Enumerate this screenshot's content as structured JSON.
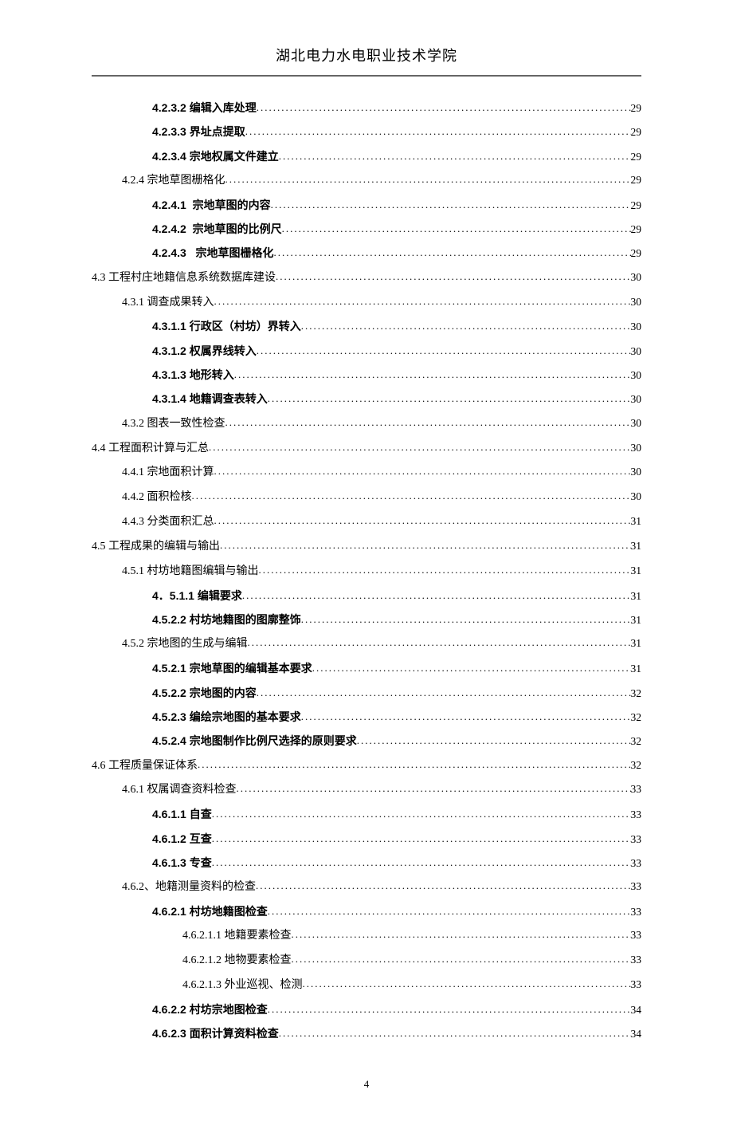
{
  "header": {
    "title": "湖北电力水电职业技术学院"
  },
  "page_number": "4",
  "toc_entries": [
    {
      "indent": 2,
      "bold": true,
      "num": "4.2.3.2 ",
      "label": "编辑入库处理 ",
      "page": "29"
    },
    {
      "indent": 2,
      "bold": true,
      "num": "4.2.3.3 ",
      "label": "界址点提取 ",
      "page": "29"
    },
    {
      "indent": 2,
      "bold": true,
      "num": "4.2.3.4 ",
      "label": "宗地权属文件建立 ",
      "page": "29"
    },
    {
      "indent": 1,
      "bold": false,
      "num": "4.2.4 ",
      "label": "宗地草图栅格化",
      "page": "29"
    },
    {
      "indent": 2,
      "bold": true,
      "num": "4.2.4.1  ",
      "label": "宗地草图的内容 ",
      "page": "29"
    },
    {
      "indent": 2,
      "bold": true,
      "num": "4.2.4.2  ",
      "label": "宗地草图的比例尺 ",
      "page": "29"
    },
    {
      "indent": 2,
      "bold": true,
      "num": "4.2.4.3   ",
      "label": "宗地草图栅格化 ",
      "page": "29"
    },
    {
      "indent": 0,
      "bold": false,
      "num": "4.3 ",
      "label": "工程村庄地籍信息系统数据库建设",
      "page": "30"
    },
    {
      "indent": 1,
      "bold": false,
      "num": "4.3.1 ",
      "label": "调查成果转入",
      "page": "30"
    },
    {
      "indent": 2,
      "bold": true,
      "num": "4.3.1.1 ",
      "label": "行政区（村坊）界转入 ",
      "page": "30"
    },
    {
      "indent": 2,
      "bold": true,
      "num": "4.3.1.2 ",
      "label": "权属界线转入 ",
      "page": "30"
    },
    {
      "indent": 2,
      "bold": true,
      "num": "4.3.1.3 ",
      "label": "地形转入 ",
      "page": "30"
    },
    {
      "indent": 2,
      "bold": true,
      "num": "4.3.1.4 ",
      "label": "地籍调查表转入 ",
      "page": "30"
    },
    {
      "indent": 1,
      "bold": false,
      "num": "4.3.2 ",
      "label": "图表一致性检查",
      "page": "30"
    },
    {
      "indent": 0,
      "bold": false,
      "num": "4.4 ",
      "label": "工程面积计算与汇总",
      "page": "30"
    },
    {
      "indent": 1,
      "bold": false,
      "num": "4.4.1 ",
      "label": "宗地面积计算",
      "page": "30"
    },
    {
      "indent": 1,
      "bold": false,
      "num": "4.4.2 ",
      "label": "面积检核",
      "page": "30"
    },
    {
      "indent": 1,
      "bold": false,
      "num": "4.4.3 ",
      "label": "分类面积汇总",
      "page": "31"
    },
    {
      "indent": 0,
      "bold": false,
      "num": "4.5 ",
      "label": "工程成果的编辑与输出",
      "page": "31"
    },
    {
      "indent": 1,
      "bold": false,
      "num": "4.5.1 ",
      "label": "村坊地籍图编辑与输出",
      "page": "31"
    },
    {
      "indent": 2,
      "bold": true,
      "num": "4．5.1.1 ",
      "label": "编辑要求 ",
      "page": "31"
    },
    {
      "indent": 2,
      "bold": true,
      "num": "4.5.2.2 ",
      "label": "村坊地籍图的图廓整饰 ",
      "page": "31"
    },
    {
      "indent": 1,
      "bold": false,
      "num": "4.5.2 ",
      "label": "宗地图的生成与编辑",
      "page": "31"
    },
    {
      "indent": 2,
      "bold": true,
      "num": "4.5.2.1 ",
      "label": "宗地草图的编辑基本要求 ",
      "page": "31"
    },
    {
      "indent": 2,
      "bold": true,
      "num": "4.5.2.2 ",
      "label": "宗地图的内容 ",
      "page": "32"
    },
    {
      "indent": 2,
      "bold": true,
      "num": "4.5.2.3 ",
      "label": "编绘宗地图的基本要求 ",
      "page": "32"
    },
    {
      "indent": 2,
      "bold": true,
      "num": "4.5.2.4 ",
      "label": "宗地图制作比例尺选择的原则要求 ",
      "page": "32"
    },
    {
      "indent": 0,
      "bold": false,
      "num": "4.6 ",
      "label": "工程质量保证体系",
      "page": "32"
    },
    {
      "indent": 1,
      "bold": false,
      "num": "4.6.1 ",
      "label": "权属调查资料检查",
      "page": "33"
    },
    {
      "indent": 2,
      "bold": true,
      "num": "4.6.1.1 ",
      "label": "自查 ",
      "page": "33"
    },
    {
      "indent": 2,
      "bold": true,
      "num": "4.6.1.2 ",
      "label": "互查 ",
      "page": "33"
    },
    {
      "indent": 2,
      "bold": true,
      "num": "4.6.1.3 ",
      "label": "专查 ",
      "page": "33"
    },
    {
      "indent": 1,
      "bold": false,
      "num": "4.6.2、",
      "label": "地籍测量资料的检查",
      "page": "33"
    },
    {
      "indent": 2,
      "bold": true,
      "num": "4.6.2.1 ",
      "label": "村坊地籍图检查 ",
      "page": "33"
    },
    {
      "indent": 3,
      "bold": false,
      "num": "4.6.2.1.1 ",
      "label": "地籍要素检查 ",
      "page": "33"
    },
    {
      "indent": 3,
      "bold": false,
      "num": "4.6.2.1.2 ",
      "label": "地物要素检查 ",
      "page": "33"
    },
    {
      "indent": 3,
      "bold": false,
      "num": "4.6.2.1.3 ",
      "label": "外业巡视、检测 ",
      "page": "33"
    },
    {
      "indent": 2,
      "bold": true,
      "num": "4.6.2.2 ",
      "label": "村坊宗地图检查 ",
      "page": "34"
    },
    {
      "indent": 2,
      "bold": true,
      "num": "4.6.2.3 ",
      "label": "面积计算资料检查 ",
      "page": "34"
    }
  ]
}
